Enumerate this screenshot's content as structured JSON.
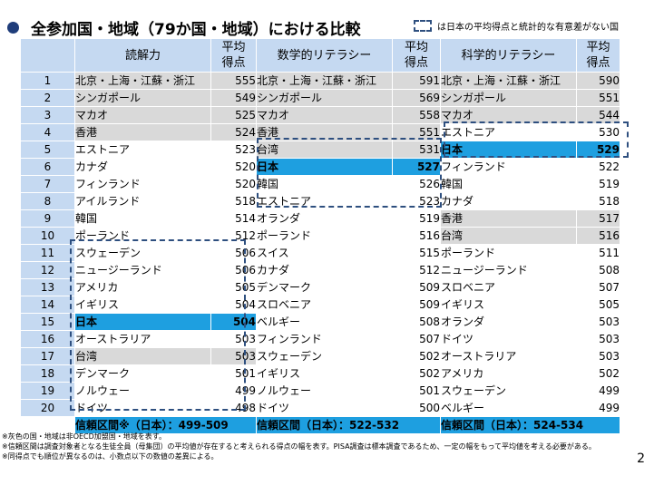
{
  "title": "全参加国・地域（79か国・地域）における比較",
  "legend_text": "は日本の平均得点と統計的な有意差がない国",
  "headers": {
    "reading": "読解力",
    "math": "数学的リテラシー",
    "science": "科学的リテラシー",
    "score": "平均得点"
  },
  "rows": [
    {
      "rank": "1",
      "r": "北京・上海・江蘇・浙江",
      "rs": "555",
      "m": "北京・上海・江蘇・浙江",
      "ms": "591",
      "s": "北京・上海・江蘇・浙江",
      "ss": "590"
    },
    {
      "rank": "2",
      "r": "シンガポール",
      "rs": "549",
      "m": "シンガポール",
      "ms": "569",
      "s": "シンガポール",
      "ss": "551"
    },
    {
      "rank": "3",
      "r": "マカオ",
      "rs": "525",
      "m": "マカオ",
      "ms": "558",
      "s": "マカオ",
      "ss": "544"
    },
    {
      "rank": "4",
      "r": "香港",
      "rs": "524",
      "m": "香港",
      "ms": "551",
      "s": "エストニア",
      "ss": "530"
    },
    {
      "rank": "5",
      "r": "エストニア",
      "rs": "523",
      "m": "台湾",
      "ms": "531",
      "s": "日本",
      "ss": "529"
    },
    {
      "rank": "6",
      "r": "カナダ",
      "rs": "520",
      "m": "日本",
      "ms": "527",
      "s": "フィンランド",
      "ss": "522"
    },
    {
      "rank": "7",
      "r": "フィンランド",
      "rs": "520",
      "m": "韓国",
      "ms": "526",
      "s": "韓国",
      "ss": "519"
    },
    {
      "rank": "8",
      "r": "アイルランド",
      "rs": "518",
      "m": "エストニア",
      "ms": "523",
      "s": "カナダ",
      "ss": "518"
    },
    {
      "rank": "9",
      "r": "韓国",
      "rs": "514",
      "m": "オランダ",
      "ms": "519",
      "s": "香港",
      "ss": "517"
    },
    {
      "rank": "10",
      "r": "ポーランド",
      "rs": "512",
      "m": "ポーランド",
      "ms": "516",
      "s": "台湾",
      "ss": "516"
    },
    {
      "rank": "11",
      "r": "スウェーデン",
      "rs": "506",
      "m": "スイス",
      "ms": "515",
      "s": "ポーランド",
      "ss": "511"
    },
    {
      "rank": "12",
      "r": "ニュージーランド",
      "rs": "506",
      "m": "カナダ",
      "ms": "512",
      "s": "ニュージーランド",
      "ss": "508"
    },
    {
      "rank": "13",
      "r": "アメリカ",
      "rs": "505",
      "m": "デンマーク",
      "ms": "509",
      "s": "スロベニア",
      "ss": "507"
    },
    {
      "rank": "14",
      "r": "イギリス",
      "rs": "504",
      "m": "スロベニア",
      "ms": "509",
      "s": "イギリス",
      "ss": "505"
    },
    {
      "rank": "15",
      "r": "日本",
      "rs": "504",
      "m": "ベルギー",
      "ms": "508",
      "s": "オランダ",
      "ss": "503"
    },
    {
      "rank": "16",
      "r": "オーストラリア",
      "rs": "503",
      "m": "フィンランド",
      "ms": "507",
      "s": "ドイツ",
      "ss": "503"
    },
    {
      "rank": "17",
      "r": "台湾",
      "rs": "503",
      "m": "スウェーデン",
      "ms": "502",
      "s": "オーストラリア",
      "ss": "503"
    },
    {
      "rank": "18",
      "r": "デンマーク",
      "rs": "501",
      "m": "イギリス",
      "ms": "502",
      "s": "アメリカ",
      "ss": "502"
    },
    {
      "rank": "19",
      "r": "ノルウェー",
      "rs": "499",
      "m": "ノルウェー",
      "ms": "501",
      "s": "スウェーデン",
      "ss": "499"
    },
    {
      "rank": "20",
      "r": "ドイツ",
      "rs": "498",
      "m": "ドイツ",
      "ms": "500",
      "s": "ベルギー",
      "ss": "499"
    }
  ],
  "confidence": {
    "reading": "信頼区間※（日本）：499-509",
    "math": "信頼区間（日本）：522-532",
    "science": "信頼区間（日本）：524-534"
  },
  "notes": [
    "※灰色の国・地域は非OECD加盟国・地域を表す。",
    "※信頼区間は調査対象者となる生徒全員（母集団）の平均値が存在すると考えられる得点の幅を表す。PISA調査は標本調査であるため、一定の幅をもって平均値を考える必要がある。",
    "※同得点でも順位が異なるのは、小数点以下の数値の差異による。"
  ],
  "page_number": "2",
  "colors": {
    "header_blue": "#c5d9f1",
    "japan_blue": "#1e9fe0",
    "non_oecd_gray": "#d9d9d9",
    "dash_navy": "#2e4f7f"
  }
}
